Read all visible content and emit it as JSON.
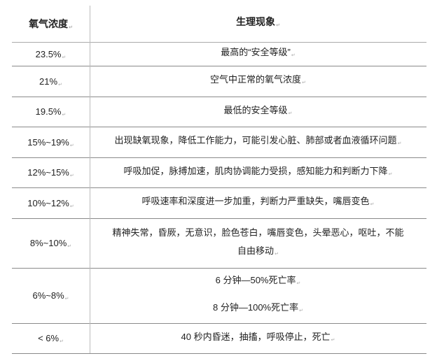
{
  "table": {
    "headers": [
      "氧气浓度",
      "生理现象"
    ],
    "rows": [
      {
        "concentration": "23.5%",
        "effect": [
          "最高的“安全等级”"
        ]
      },
      {
        "concentration": "21%",
        "effect": [
          "空气中正常的氧气浓度"
        ]
      },
      {
        "concentration": "19.5%",
        "effect": [
          "最低的安全等级"
        ]
      },
      {
        "concentration": "15%~19%",
        "effect": [
          "出现缺氧现象，降低工作能力，可能引发心脏、肺部或者血液循环问题"
        ]
      },
      {
        "concentration": "12%~15%",
        "effect": [
          "呼吸加促，脉搏加速，肌肉协调能力受损，感知能力和判断力下降"
        ]
      },
      {
        "concentration": "10%~12%",
        "effect": [
          "呼吸速率和深度进一步加重，判断力严重缺失，嘴唇变色"
        ]
      },
      {
        "concentration": "8%~10%",
        "effect": [
          "精神失常，昏厥，无意识，脸色苍白，嘴唇变色，头晕恶心，呕吐，不能",
          "自由移动"
        ]
      },
      {
        "concentration": "6%~8%",
        "effect": [
          "6 分钟—50%死亡率",
          "8 分钟—100%死亡率"
        ]
      },
      {
        "concentration": "< 6%",
        "effect": [
          "40 秒内昏迷，抽搐，呼吸停止，死亡"
        ]
      }
    ]
  }
}
